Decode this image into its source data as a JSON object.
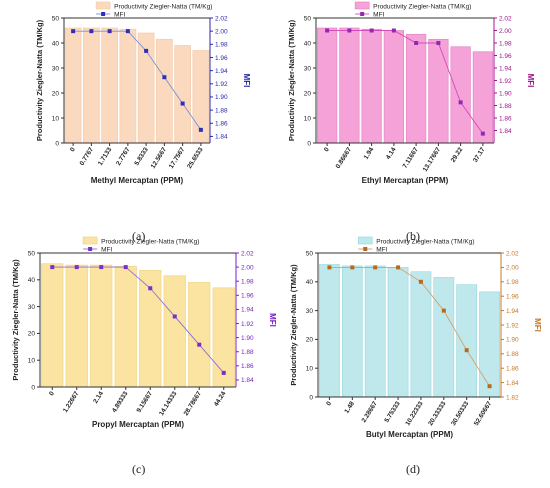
{
  "chart_data": [
    {
      "id": "a",
      "type": "bar",
      "caption": "(a)",
      "xlabel": "Methyl Mercaptan (PPM)",
      "ylabel": "Productivity  Ziegler-Natta (TM/Kg)",
      "y2label": "MFI",
      "categories": [
        "0",
        "0.7767",
        "1.7133",
        "2.7767",
        "5.8333",
        "12.5667",
        "17.7567",
        "25.6533"
      ],
      "series": [
        {
          "name": "Productivity  Ziegler-Natta (TM/Kg)",
          "kind": "bar",
          "axis": "left",
          "values": [
            46,
            46,
            46,
            45.5,
            44,
            41.5,
            39,
            37
          ]
        },
        {
          "name": "MFI",
          "kind": "line",
          "axis": "right",
          "marker": "square",
          "values": [
            2.0,
            2.0,
            2.0,
            2.0,
            1.97,
            1.93,
            1.89,
            1.85
          ]
        }
      ],
      "ylim": [
        0,
        50
      ],
      "yticks": [
        "0",
        "10",
        "20",
        "30",
        "40",
        "50"
      ],
      "y2lim": [
        1.83,
        2.02
      ],
      "y2ticks": [
        "1.84",
        "1.86",
        "1.88",
        "1.90",
        "1.92",
        "1.94",
        "1.96",
        "1.98",
        "2.00",
        "2.02"
      ],
      "colors": {
        "bar": "#fbd9bf",
        "bar_edge": "#f2c9a8",
        "line": "#7b90d6",
        "marker": "#2e2eb8",
        "right_axis": "#2929a8"
      },
      "legend": "top-center"
    },
    {
      "id": "b",
      "type": "bar",
      "caption": "(b)",
      "xlabel": "Ethyl Mercaptan (PPM)",
      "ylabel": "Productivity  Ziegler-Natta (TM/Kg)",
      "y2label": "MFI",
      "categories": [
        "0",
        "0.86667",
        "1.94",
        "4.14",
        "7.11667",
        "13.17667",
        "29.22",
        "37.17"
      ],
      "series": [
        {
          "name": "Productivity  Ziegler-Natta (TM/Kg)",
          "kind": "bar",
          "axis": "left",
          "values": [
            46,
            46,
            45.5,
            45,
            43.5,
            41.5,
            38.5,
            36.5
          ]
        },
        {
          "name": "MFI",
          "kind": "line",
          "axis": "right",
          "marker": "square",
          "values": [
            2.0,
            2.0,
            2.0,
            2.0,
            1.98,
            1.98,
            1.885,
            1.835
          ]
        }
      ],
      "ylim": [
        0,
        50
      ],
      "yticks": [
        "0",
        "10",
        "20",
        "30",
        "40",
        "50"
      ],
      "y2lim": [
        1.82,
        2.02
      ],
      "y2ticks": [
        "1.84",
        "1.86",
        "1.88",
        "1.90",
        "1.92",
        "1.94",
        "1.96",
        "1.98",
        "2.00",
        "2.02"
      ],
      "colors": {
        "bar": "#f5a2d8",
        "bar_edge": "#e07ec4",
        "line": "#d84ab8",
        "marker": "#8e2bb0",
        "right_axis": "#a0148c"
      },
      "legend": "top-center"
    },
    {
      "id": "c",
      "type": "bar",
      "caption": "(c)",
      "xlabel": "Propyl Mercaptan (PPM)",
      "ylabel": "Productivity  Ziegler-Natta (TM/Kg)",
      "y2label": "MFI",
      "categories": [
        "0",
        "1.22667",
        "2.14",
        "4.89333",
        "9.15667",
        "14.14333",
        "28.78667",
        "44.24"
      ],
      "series": [
        {
          "name": "Productivity  Ziegler-Natta (TM/Kg)",
          "kind": "bar",
          "axis": "left",
          "values": [
            46,
            45.5,
            45.5,
            45,
            43.5,
            41.5,
            39,
            37
          ]
        },
        {
          "name": "MFI",
          "kind": "line",
          "axis": "right",
          "marker": "square",
          "values": [
            2.0,
            2.0,
            2.0,
            2.0,
            1.97,
            1.93,
            1.89,
            1.85
          ]
        }
      ],
      "ylim": [
        0,
        50
      ],
      "yticks": [
        "0",
        "10",
        "20",
        "30",
        "40",
        "50"
      ],
      "y2lim": [
        1.83,
        2.02
      ],
      "y2ticks": [
        "1.84",
        "1.86",
        "1.88",
        "1.90",
        "1.92",
        "1.94",
        "1.96",
        "1.98",
        "2.00",
        "2.02"
      ],
      "colors": {
        "bar": "#fbe3a2",
        "bar_edge": "#f0d07a",
        "line": "#8a6fd8",
        "marker": "#7a2fc8",
        "right_axis": "#7a1fc4"
      },
      "legend": "top-center"
    },
    {
      "id": "d",
      "type": "bar",
      "caption": "(d)",
      "xlabel": "Butyl Mercaptan (PPM)",
      "ylabel": "Productivity  Ziegler-Natta (TM/Kg)",
      "y2label": "MFI",
      "categories": [
        "0",
        "1.48",
        "2.28667",
        "5.75333",
        "10.22333",
        "20.33333",
        "30.50333",
        "52.60667"
      ],
      "series": [
        {
          "name": "Productivity  Ziegler-Natta (TM/Kg)",
          "kind": "bar",
          "axis": "left",
          "values": [
            46,
            45.5,
            45.5,
            45,
            43.5,
            41.5,
            39,
            36.5
          ]
        },
        {
          "name": "MFI",
          "kind": "line",
          "axis": "right",
          "marker": "square",
          "values": [
            2.0,
            2.0,
            2.0,
            2.0,
            1.98,
            1.94,
            1.885,
            1.835
          ]
        }
      ],
      "ylim": [
        0,
        50
      ],
      "yticks": [
        "0",
        "10",
        "20",
        "30",
        "40",
        "50"
      ],
      "y2lim": [
        1.82,
        2.02
      ],
      "y2ticks": [
        "1.82",
        "1.84",
        "1.86",
        "1.88",
        "1.90",
        "1.92",
        "1.94",
        "1.96",
        "1.98",
        "2.00",
        "2.02"
      ],
      "colors": {
        "bar": "#bfe8ec",
        "bar_edge": "#96d6de",
        "line": "#d4a066",
        "marker": "#b86a1c",
        "right_axis": "#c47a2a"
      },
      "legend": "top-center"
    }
  ]
}
